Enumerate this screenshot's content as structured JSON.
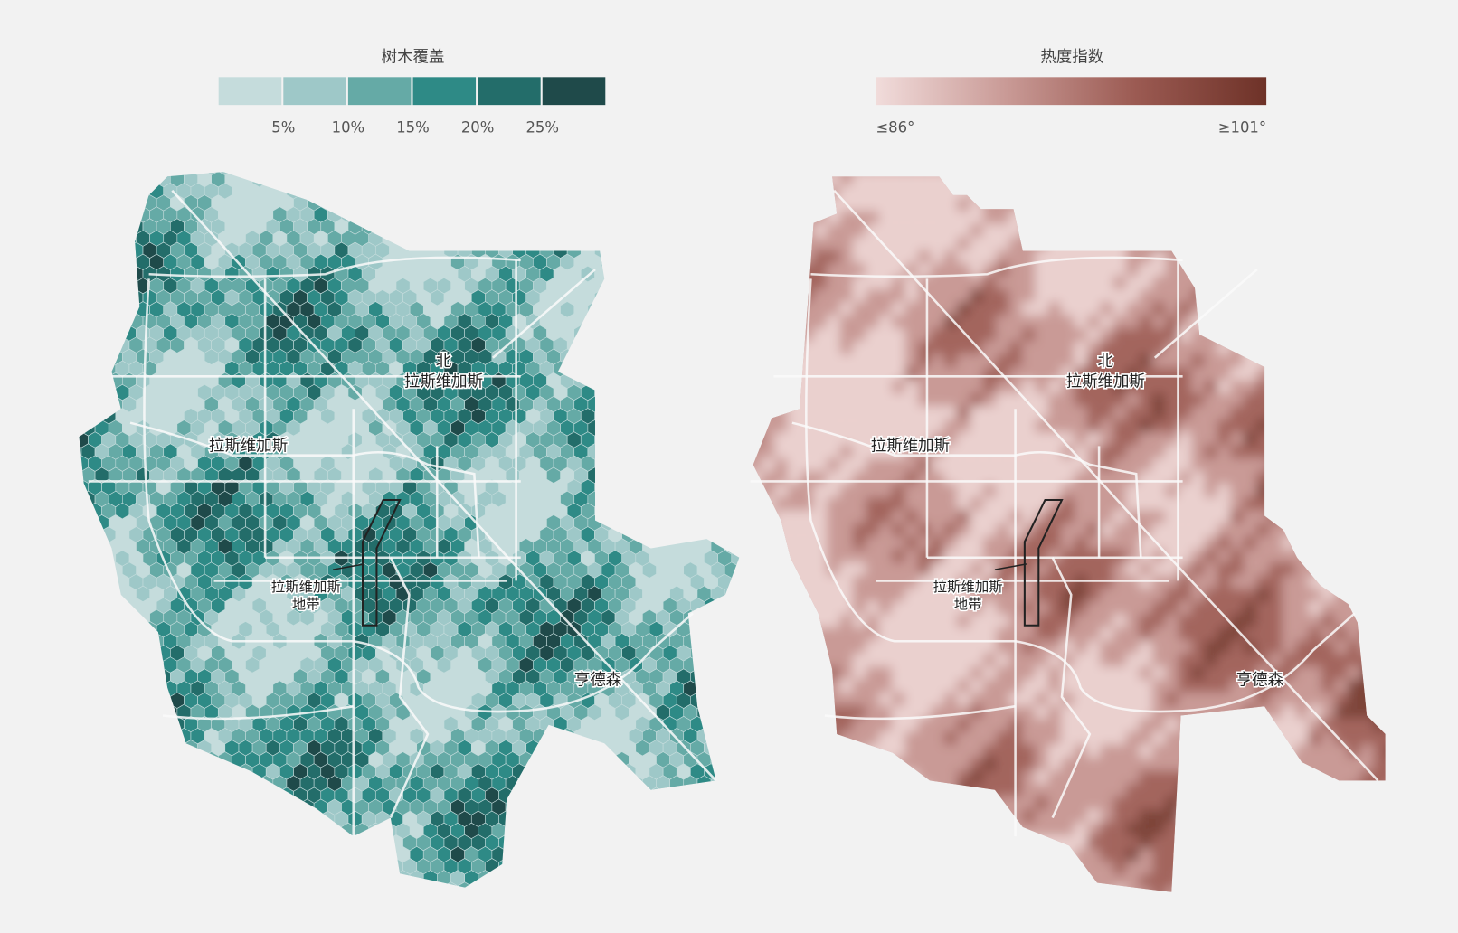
{
  "tree_cover": {
    "title": "树木覆盖",
    "ticks": [
      "5%",
      "10%",
      "15%",
      "20%",
      "25%"
    ],
    "colors": [
      "#c5dcdc",
      "#9ec8c8",
      "#65aaa6",
      "#2e8a86",
      "#236d6a",
      "#1f4a4a"
    ]
  },
  "heat_index": {
    "title": "热度指数",
    "min_label": "≤86°",
    "max_label": "≥101°",
    "colors": [
      "#f1dcdb",
      "#c99a96",
      "#9b5a52",
      "#6e3228"
    ]
  },
  "maps": [
    {
      "places": {
        "north": [
          "北",
          "拉斯维加斯"
        ],
        "city": "拉斯维加斯",
        "strip": [
          "拉斯维加斯",
          "地带"
        ],
        "henderson": "亨德森"
      }
    },
    {
      "places": {
        "north": [
          "北",
          "拉斯维加斯"
        ],
        "city": "拉斯维加斯",
        "strip": [
          "拉斯维加斯",
          "地带"
        ],
        "henderson": "亨德森"
      }
    }
  ]
}
